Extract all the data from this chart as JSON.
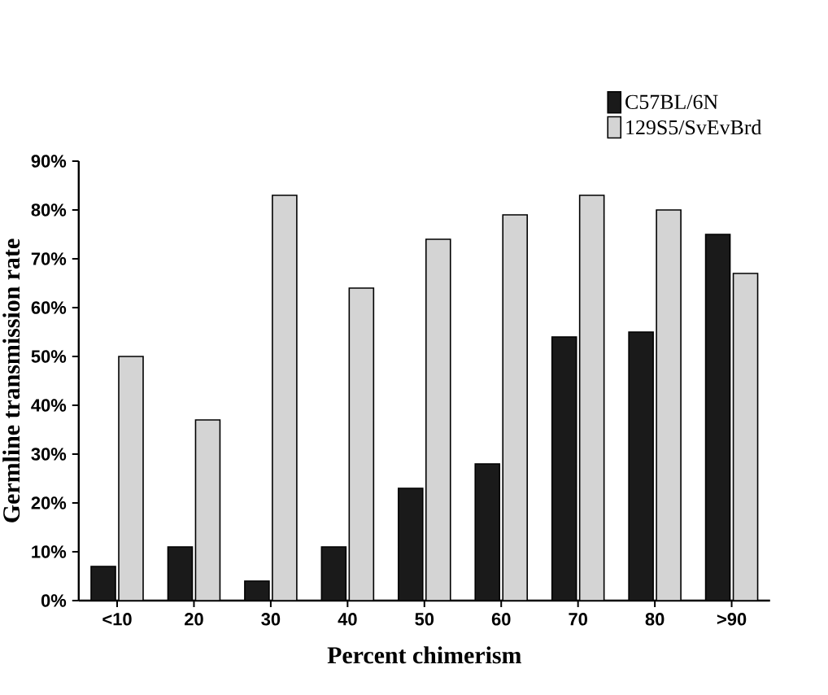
{
  "chart_data": {
    "type": "bar",
    "xlabel": "Percent chimerism",
    "ylabel": "Germline transmission rate",
    "categories": [
      "<10",
      "20",
      "30",
      "40",
      "50",
      "60",
      "70",
      "80",
      ">90"
    ],
    "series": [
      {
        "name": "C57BL/6N",
        "color": "#1a1a1a",
        "values": [
          7,
          11,
          4,
          11,
          23,
          28,
          54,
          55,
          75
        ]
      },
      {
        "name": "129S5/SvEvBrd",
        "color": "#d4d4d4",
        "values": [
          50,
          37,
          83,
          64,
          74,
          79,
          83,
          80,
          67
        ]
      }
    ],
    "ylim": [
      0,
      90
    ],
    "yticks": [
      {
        "value": 0,
        "label": "0%"
      },
      {
        "value": 10,
        "label": "10%"
      },
      {
        "value": 20,
        "label": "20%"
      },
      {
        "value": 30,
        "label": "30%"
      },
      {
        "value": 40,
        "label": "40%"
      },
      {
        "value": 50,
        "label": "50%"
      },
      {
        "value": 60,
        "label": "60%"
      },
      {
        "value": 70,
        "label": "70%"
      },
      {
        "value": 80,
        "label": "80%"
      },
      {
        "value": 90,
        "label": "90%"
      }
    ],
    "legend": "top right",
    "grid": false
  }
}
